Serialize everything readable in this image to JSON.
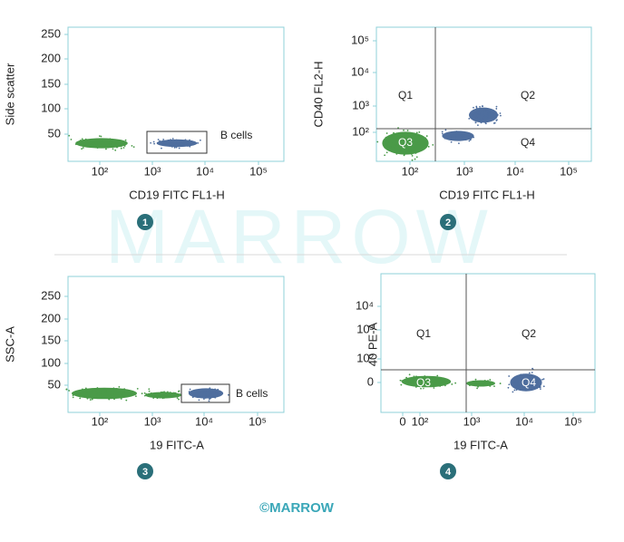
{
  "panels": [
    {
      "number": "1",
      "y_label": "Side scatter",
      "x_label": "CD19 FITC FL1-H",
      "y_ticks": [
        250,
        200,
        150,
        100,
        50
      ],
      "x_ticks": [
        "10²",
        "10³",
        "10⁴",
        "10⁵"
      ],
      "gate_label": "B cells"
    },
    {
      "number": "2",
      "y_label": "CD40 FL2-H",
      "x_label": "CD19 FITC FL1-H",
      "y_ticks": [
        "10⁵",
        "10⁴",
        "10³",
        "10²"
      ],
      "x_ticks": [
        "10²",
        "10³",
        "10⁴",
        "10⁵"
      ],
      "quadrants": [
        "Q1",
        "Q2",
        "Q3",
        "Q4"
      ]
    },
    {
      "number": "3",
      "y_label": "SSC-A",
      "x_label": "19 FITC-A",
      "y_ticks": [
        250,
        200,
        150,
        100,
        50
      ],
      "x_ticks": [
        "10²",
        "10³",
        "10⁴",
        "10⁵"
      ],
      "gate_label": "B cells"
    },
    {
      "number": "4",
      "y_label": "40 PE-A",
      "x_label": "19 FITC-A",
      "y_ticks": [
        "10⁴",
        "10³",
        "10²",
        0
      ],
      "x_ticks": [
        0,
        "10²",
        "10³",
        "10⁴",
        "10⁵"
      ],
      "quadrants": [
        "Q1",
        "Q2",
        "Q3",
        "Q4"
      ]
    }
  ],
  "watermark": "MARROW",
  "footer": "©MARROW"
}
